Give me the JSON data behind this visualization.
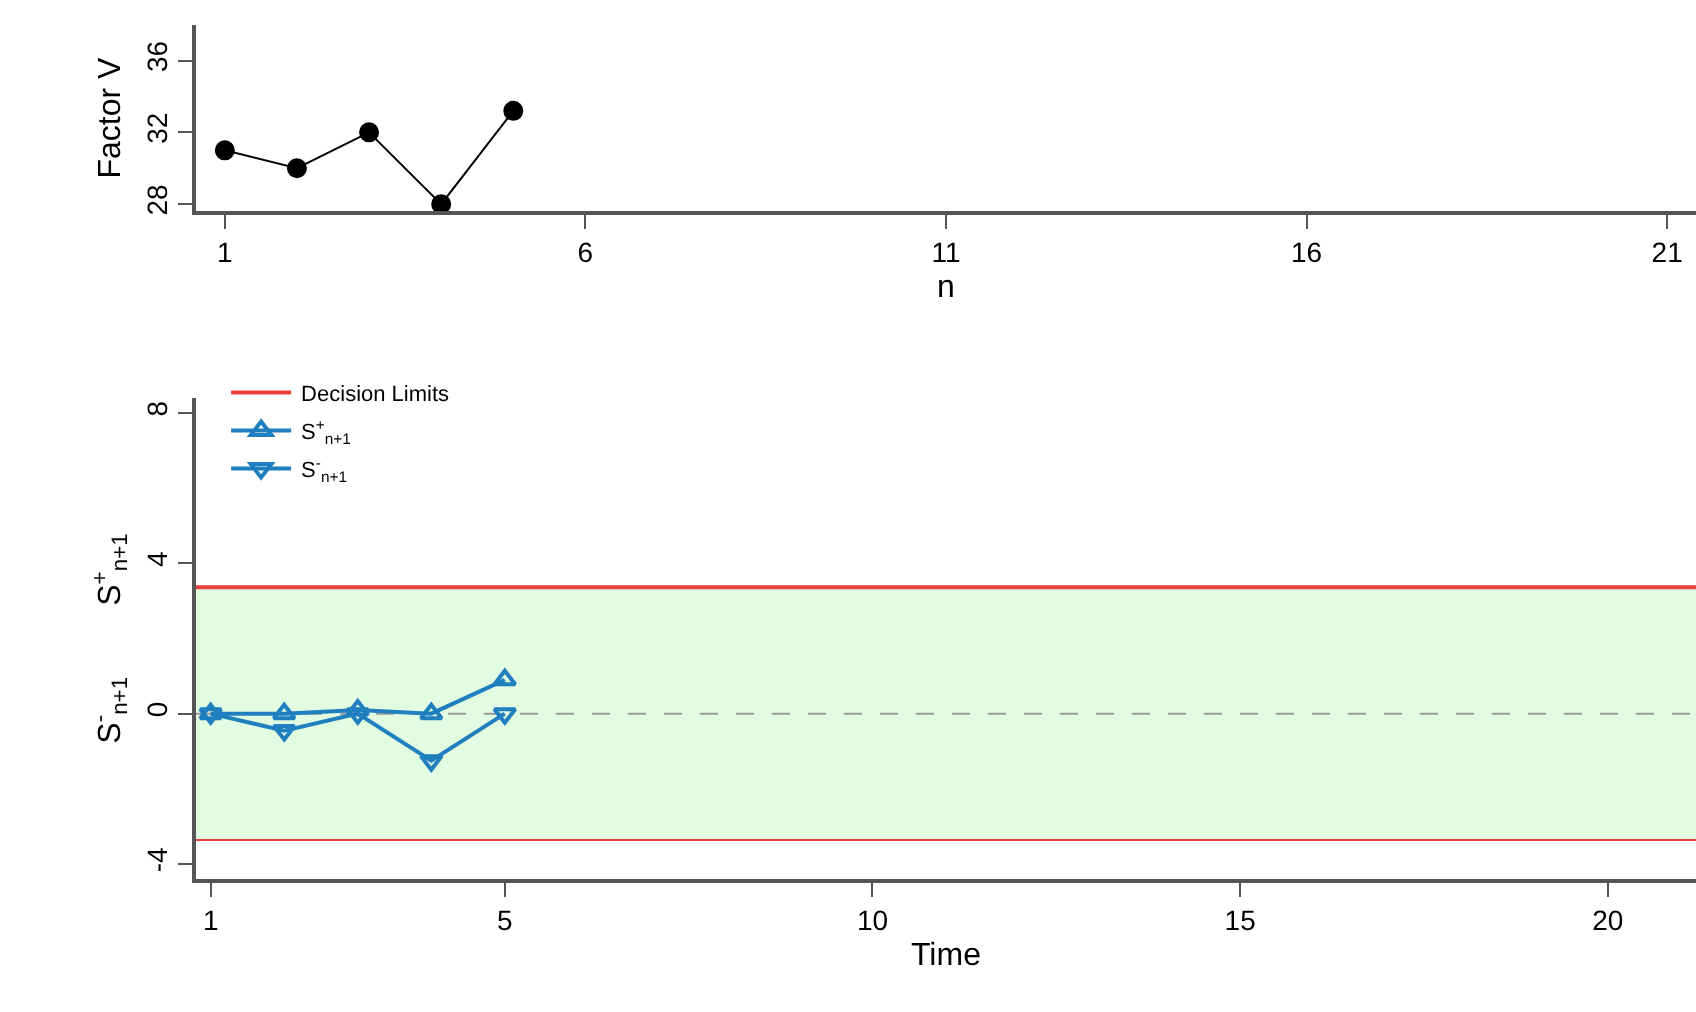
{
  "chart_data": [
    {
      "type": "line",
      "x": [
        1,
        2,
        3,
        4,
        5
      ],
      "values": [
        31.0,
        30.0,
        32.0,
        28.0,
        33.2
      ],
      "color": "#000000",
      "marker": "circle",
      "xlim": [
        0.6,
        21.4
      ],
      "xticks": [
        1,
        6,
        11,
        16,
        21
      ],
      "ylim": [
        27.6,
        38
      ],
      "yticks": [
        28,
        32,
        36
      ],
      "xlabel": "n",
      "ylabel": "Factor V"
    },
    {
      "type": "line",
      "x": [
        1,
        2,
        3,
        4,
        5
      ],
      "xlabel": "Time",
      "ylabel": "S$^{-}$$_{n+1}$        S$^{+}$$_{n+1}$",
      "xlim": [
        0.8,
        21.2
      ],
      "xticks": [
        1,
        5,
        10,
        15,
        20
      ],
      "ylim": [
        -4.4,
        8.4
      ],
      "yticks": [
        -4,
        0,
        4,
        8
      ],
      "legend": "top left",
      "series": [
        {
          "name": "S$^{+}$$_{n+1}$",
          "color": "#1f7fbf",
          "marker": "triangle",
          "values": [
            0,
            0,
            0.1,
            0,
            0.9
          ]
        },
        {
          "name": "S$^{-}$$_{n+1}$",
          "color": "#1f7fbf",
          "marker": "triangle-down",
          "values": [
            0,
            -0.45,
            0,
            -1.25,
            0
          ]
        }
      ],
      "bands": [
        {
          "axis": "y",
          "from": -3.36,
          "to": 3.36,
          "color": "#e2fce2"
        }
      ],
      "ref_lines": [
        {
          "axis": "y",
          "value": 3.36,
          "label": "Decision Limits",
          "color": "#e8413b",
          "line_style": "solid"
        },
        {
          "axis": "y",
          "value": -3.36,
          "color": "#e8413b",
          "line_style": "solid"
        },
        {
          "axis": "y",
          "value": 0,
          "color": "#999999",
          "line_style": "dashed"
        }
      ]
    }
  ]
}
